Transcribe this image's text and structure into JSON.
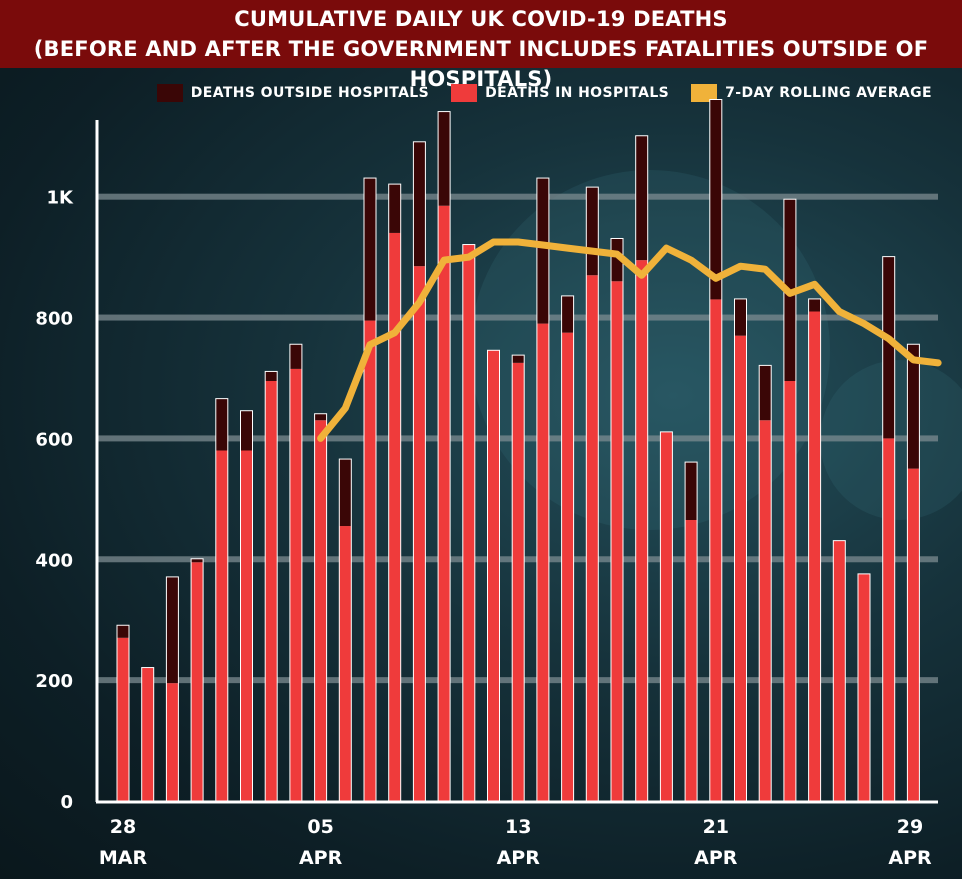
{
  "title_line1": "CUMULATIVE DAILY UK COVID-19 DEATHS",
  "title_line2": "(BEFORE AND AFTER THE GOVERNMENT INCLUDES FATALITIES OUTSIDE OF HOSPITALS)",
  "legend": [
    {
      "label": "DEATHS OUTSIDE HOSPITALS",
      "color": "#3a0606"
    },
    {
      "label": "DEATHS IN HOSPITALS",
      "color": "#ef3b3b"
    },
    {
      "label": "7-DAY ROLLING AVERAGE",
      "color": "#f0b23a"
    }
  ],
  "chart_data": {
    "type": "bar",
    "stacked": true,
    "dates": [
      "2020-03-28",
      "2020-03-29",
      "2020-03-30",
      "2020-03-31",
      "2020-04-01",
      "2020-04-02",
      "2020-04-03",
      "2020-04-04",
      "2020-04-05",
      "2020-04-06",
      "2020-04-07",
      "2020-04-08",
      "2020-04-09",
      "2020-04-10",
      "2020-04-11",
      "2020-04-12",
      "2020-04-13",
      "2020-04-14",
      "2020-04-15",
      "2020-04-16",
      "2020-04-17",
      "2020-04-18",
      "2020-04-19",
      "2020-04-20",
      "2020-04-21",
      "2020-04-22",
      "2020-04-23",
      "2020-04-24",
      "2020-04-25",
      "2020-04-26",
      "2020-04-27",
      "2020-04-28",
      "2020-04-29"
    ],
    "x_tick_labels": [
      {
        "day": "28",
        "month": "MAR",
        "index": 0
      },
      {
        "day": "05",
        "month": "APR",
        "index": 8
      },
      {
        "day": "13",
        "month": "APR",
        "index": 16
      },
      {
        "day": "21",
        "month": "APR",
        "index": 24
      },
      {
        "day": "29",
        "month": "APR",
        "index": 32
      }
    ],
    "y_ticks": [
      {
        "value": 0,
        "label": "0"
      },
      {
        "value": 200,
        "label": "200"
      },
      {
        "value": 400,
        "label": "400"
      },
      {
        "value": 600,
        "label": "600"
      },
      {
        "value": 800,
        "label": "800"
      },
      {
        "value": 1000,
        "label": "1K"
      }
    ],
    "ylim": [
      0,
      1160
    ],
    "series": [
      {
        "name": "DEATHS IN HOSPITALS",
        "color": "#ef3b3b",
        "values": [
          270,
          220,
          195,
          395,
          580,
          580,
          695,
          715,
          630,
          455,
          795,
          940,
          885,
          985,
          920,
          745,
          725,
          790,
          775,
          870,
          860,
          895,
          610,
          465,
          830,
          770,
          630,
          695,
          810,
          430,
          375,
          600,
          550
        ]
      },
      {
        "name": "DEATHS OUTSIDE HOSPITALS",
        "color": "#3a0606",
        "values": [
          20,
          0,
          175,
          5,
          85,
          65,
          15,
          40,
          10,
          110,
          235,
          80,
          205,
          155,
          0,
          0,
          12,
          240,
          60,
          145,
          70,
          205,
          0,
          95,
          330,
          60,
          90,
          300,
          20,
          0,
          0,
          300,
          205
        ]
      }
    ],
    "rolling_average": {
      "name": "7-DAY ROLLING AVERAGE",
      "color": "#f0b23a",
      "start_index": 8,
      "values": [
        600,
        650,
        755,
        775,
        825,
        895,
        900,
        925,
        925,
        920,
        915,
        910,
        905,
        870,
        915,
        895,
        865,
        885,
        880,
        840,
        855,
        810,
        790,
        765,
        730,
        725
      ]
    },
    "grid": true
  }
}
